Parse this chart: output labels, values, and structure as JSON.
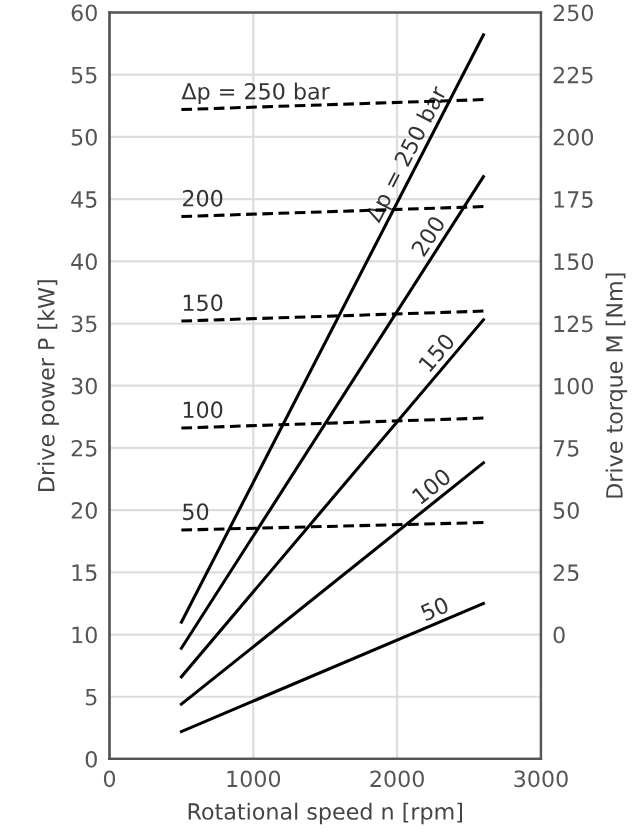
{
  "chart_data": {
    "type": "line",
    "xlabel": "Rotational speed n [rpm]",
    "ylabel": "Drive power P [kW]",
    "y2label": "Drive torque M [Nm]",
    "x": [
      500,
      2600
    ],
    "series": [
      {
        "color": "#000000",
        "values": [
          11,
          58.2
        ],
        "line_style": "solid"
      },
      {
        "color": "#000000",
        "values": [
          8.9,
          46.8
        ],
        "line_style": "solid"
      },
      {
        "color": "#000000",
        "values": [
          6.6,
          35.3
        ],
        "line_style": "solid"
      },
      {
        "color": "#000000",
        "values": [
          4.4,
          23.8
        ],
        "line_style": "solid"
      },
      {
        "color": "#000000",
        "values": [
          2.2,
          12.5
        ],
        "line_style": "solid"
      },
      {
        "color": "#000000",
        "values": [
          211,
          215
        ],
        "axis": "y2",
        "line_style": "dashed"
      },
      {
        "color": "#000000",
        "values": [
          168,
          172
        ],
        "axis": "y2",
        "line_style": "dashed"
      },
      {
        "color": "#000000",
        "values": [
          126,
          130
        ],
        "axis": "y2",
        "line_style": "dashed"
      },
      {
        "color": "#000000",
        "values": [
          83,
          87
        ],
        "axis": "y2",
        "line_style": "dashed"
      },
      {
        "color": "#000000",
        "values": [
          42,
          45
        ],
        "axis": "y2",
        "line_style": "dashed"
      }
    ],
    "annotations": [
      {
        "text": "Δp = 250 bar",
        "x": 2150,
        "y": 48.1
      },
      {
        "text": "200",
        "x": 2300,
        "y": 41.4
      },
      {
        "text": "150",
        "x": 2350,
        "y": 31.9
      },
      {
        "text": "100",
        "x": 2300,
        "y": 21
      },
      {
        "text": "50",
        "x": 2300,
        "y": 11
      },
      "Δp = 250 bar",
      "200",
      "150",
      "100",
      "50"
    ],
    "xlim": [
      0,
      3000
    ],
    "xticks": [
      0,
      1000,
      2000,
      3000
    ],
    "ylim": [
      0,
      60
    ],
    "yticks": [
      0,
      5,
      10,
      15,
      20,
      25,
      30,
      35,
      40,
      45,
      50,
      55,
      60
    ],
    "y2lim": [
      -50,
      250
    ],
    "y2ticks": [
      0,
      25,
      50,
      75,
      100,
      125,
      150,
      175,
      200,
      225,
      250
    ],
    "grid": true
  }
}
